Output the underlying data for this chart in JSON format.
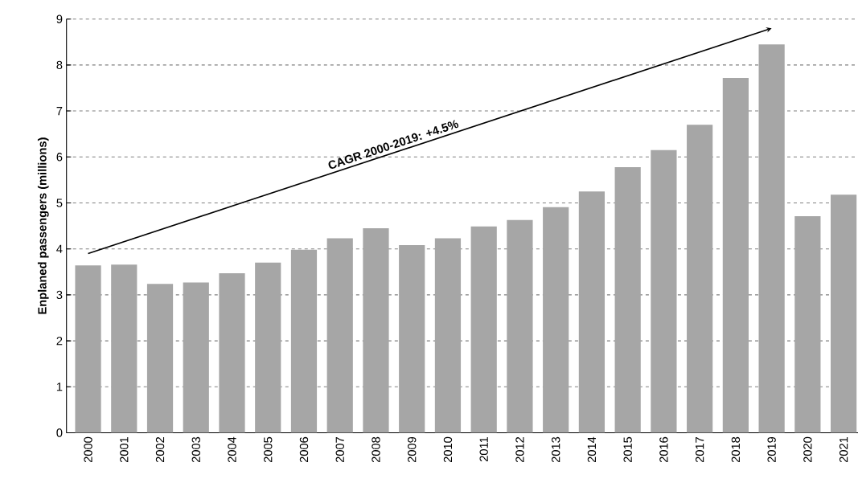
{
  "chart_data": {
    "type": "bar",
    "ylabel": "Enplaned passengers (millions)",
    "categories": [
      "2000",
      "2001",
      "2002",
      "2003",
      "2004",
      "2005",
      "2006",
      "2007",
      "2008",
      "2009",
      "2010",
      "2011",
      "2012",
      "2013",
      "2014",
      "2015",
      "2016",
      "2017",
      "2018",
      "2019",
      "2020",
      "2021"
    ],
    "values": [
      3.64,
      3.66,
      3.24,
      3.27,
      3.47,
      3.7,
      3.98,
      4.23,
      4.45,
      4.08,
      4.23,
      4.49,
      4.63,
      4.91,
      5.25,
      5.78,
      6.15,
      6.7,
      7.72,
      8.45,
      4.71,
      5.18
    ],
    "color": "#a6a6a6",
    "ylim": [
      0,
      9
    ],
    "yticks": [
      0,
      1,
      2,
      3,
      4,
      5,
      6,
      7,
      8,
      9
    ],
    "grid": "y",
    "annotations": [
      "CAGR 2000-2019: +4.5%"
    ]
  }
}
